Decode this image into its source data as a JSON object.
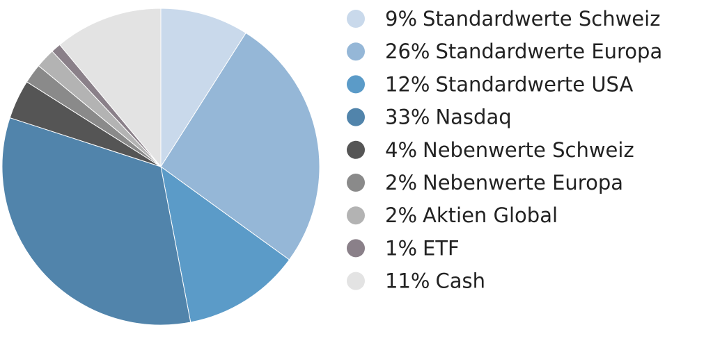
{
  "chart_data": {
    "type": "pie",
    "categories": [
      "Standardwerte Schweiz",
      "Standardwerte Europa",
      "Standardwerte USA",
      "Nasdaq",
      "Nebenwerte Schweiz",
      "Nebenwerte Europa",
      "Aktien Global",
      "ETF",
      "Cash"
    ],
    "values": [
      9,
      26,
      12,
      33,
      4,
      2,
      2,
      1,
      11
    ],
    "value_labels": [
      "9%",
      "26%",
      "12%",
      "33%",
      "4%",
      "2%",
      "2%",
      "1%",
      "11%"
    ],
    "colors": [
      "#c9d9eb",
      "#95b7d7",
      "#5b9bc8",
      "#5184ab",
      "#555555",
      "#8a8a8a",
      "#b3b3b3",
      "#8a8089",
      "#e3e3e3"
    ]
  }
}
